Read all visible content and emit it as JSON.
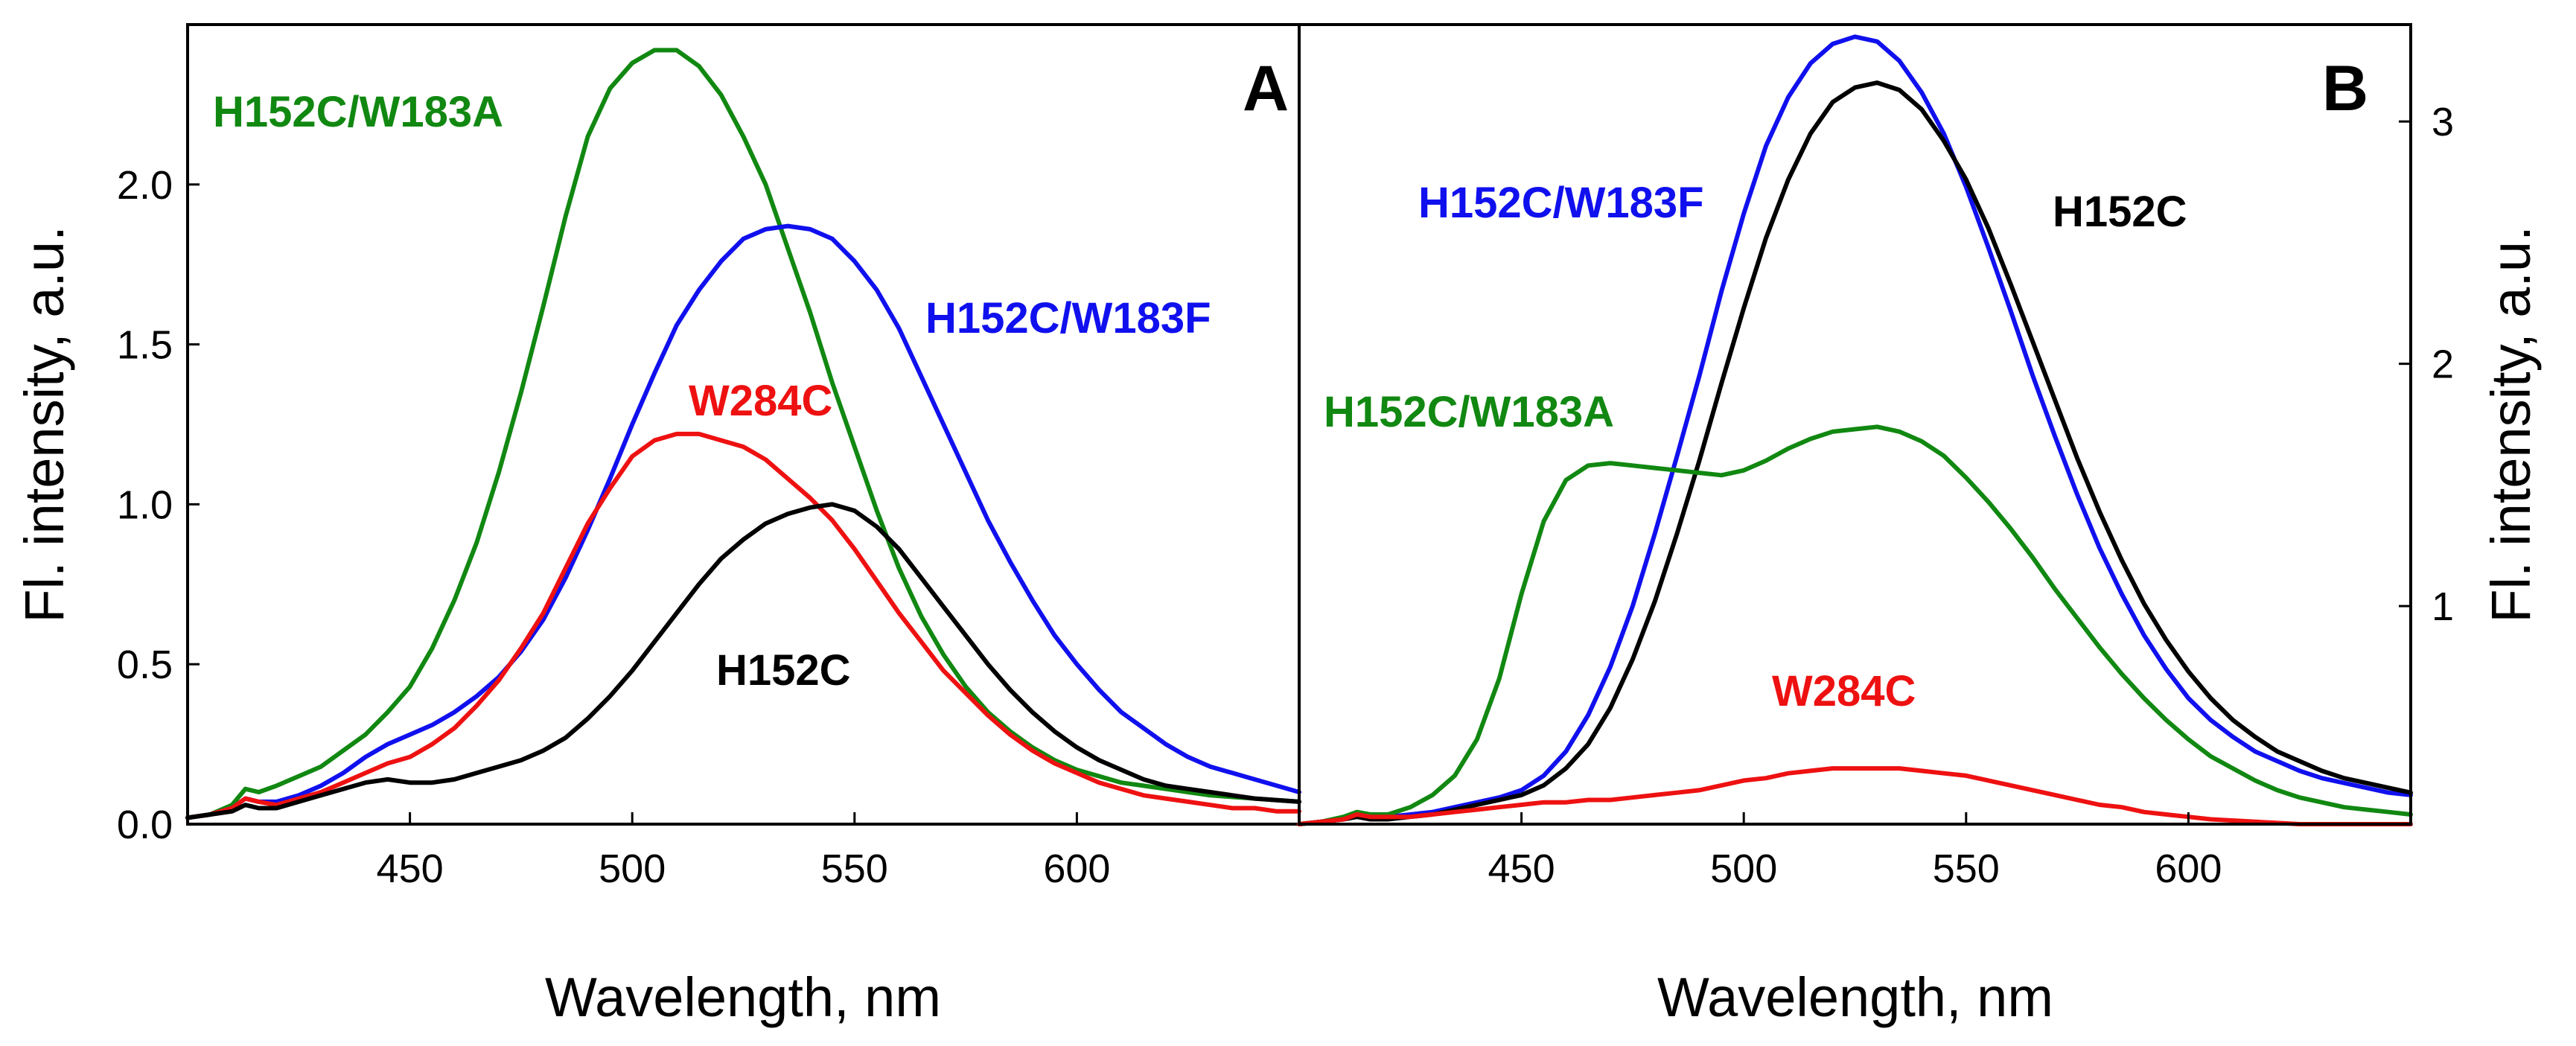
{
  "colors": {
    "H152C": "#000000",
    "H152C/W183F": "#1010ee",
    "H152C/W183A": "#118811",
    "W284C": "#ee1111"
  },
  "chart_data": [
    {
      "type": "line",
      "panel_letter": "A",
      "title": "",
      "xlabel": "Wavelength, nm",
      "ylabel": "Fl. intensity, a.u.",
      "xlim": [
        400,
        650
      ],
      "ylim": [
        0,
        2.5
      ],
      "xticks": [
        450,
        500,
        550,
        600
      ],
      "yticks": [
        0.0,
        0.5,
        1.0,
        1.5,
        2.0
      ],
      "xtick_labels": [
        "450",
        "500",
        "550",
        "600"
      ],
      "ytick_labels": [
        "0.0",
        "0.5",
        "1.0",
        "1.5",
        "2.0"
      ],
      "grid": false,
      "x": [
        400,
        405,
        410,
        413,
        416,
        420,
        425,
        430,
        435,
        440,
        445,
        450,
        455,
        460,
        465,
        470,
        475,
        480,
        485,
        490,
        495,
        500,
        505,
        510,
        515,
        520,
        525,
        530,
        535,
        540,
        545,
        550,
        555,
        560,
        565,
        570,
        575,
        580,
        585,
        590,
        595,
        600,
        605,
        610,
        615,
        620,
        625,
        630,
        635,
        640,
        645,
        650
      ],
      "series": [
        {
          "name": "H152C/W183A",
          "label_text": "H152C/W183A",
          "values": [
            0.02,
            0.03,
            0.06,
            0.11,
            0.1,
            0.12,
            0.15,
            0.18,
            0.23,
            0.28,
            0.35,
            0.43,
            0.55,
            0.7,
            0.88,
            1.1,
            1.35,
            1.62,
            1.9,
            2.15,
            2.3,
            2.38,
            2.42,
            2.42,
            2.37,
            2.28,
            2.15,
            2.0,
            1.8,
            1.6,
            1.38,
            1.18,
            0.98,
            0.8,
            0.65,
            0.53,
            0.43,
            0.35,
            0.29,
            0.24,
            0.2,
            0.17,
            0.15,
            0.13,
            0.12,
            0.11,
            0.1,
            0.09,
            0.085,
            0.08,
            0.075,
            0.07
          ]
        },
        {
          "name": "H152C/W183F",
          "label_text": "H152C/W183F",
          "values": [
            0.02,
            0.03,
            0.05,
            0.08,
            0.07,
            0.07,
            0.09,
            0.12,
            0.16,
            0.21,
            0.25,
            0.28,
            0.31,
            0.35,
            0.4,
            0.46,
            0.54,
            0.64,
            0.77,
            0.92,
            1.08,
            1.25,
            1.41,
            1.56,
            1.67,
            1.76,
            1.83,
            1.86,
            1.87,
            1.86,
            1.83,
            1.76,
            1.67,
            1.55,
            1.4,
            1.25,
            1.1,
            0.95,
            0.82,
            0.7,
            0.59,
            0.5,
            0.42,
            0.35,
            0.3,
            0.25,
            0.21,
            0.18,
            0.16,
            0.14,
            0.12,
            0.1
          ]
        },
        {
          "name": "W284C",
          "label_text": "W284C",
          "values": [
            0.02,
            0.03,
            0.05,
            0.08,
            0.07,
            0.06,
            0.08,
            0.1,
            0.13,
            0.16,
            0.19,
            0.21,
            0.25,
            0.3,
            0.37,
            0.45,
            0.55,
            0.66,
            0.8,
            0.94,
            1.05,
            1.15,
            1.2,
            1.22,
            1.22,
            1.2,
            1.18,
            1.14,
            1.08,
            1.02,
            0.95,
            0.86,
            0.76,
            0.66,
            0.57,
            0.48,
            0.41,
            0.34,
            0.28,
            0.23,
            0.19,
            0.16,
            0.13,
            0.11,
            0.09,
            0.08,
            0.07,
            0.06,
            0.05,
            0.05,
            0.04,
            0.04
          ]
        },
        {
          "name": "H152C",
          "label_text": "H152C",
          "values": [
            0.02,
            0.03,
            0.04,
            0.06,
            0.05,
            0.05,
            0.07,
            0.09,
            0.11,
            0.13,
            0.14,
            0.13,
            0.13,
            0.14,
            0.16,
            0.18,
            0.2,
            0.23,
            0.27,
            0.33,
            0.4,
            0.48,
            0.57,
            0.66,
            0.75,
            0.83,
            0.89,
            0.94,
            0.97,
            0.99,
            1.0,
            0.98,
            0.93,
            0.86,
            0.77,
            0.68,
            0.59,
            0.5,
            0.42,
            0.35,
            0.29,
            0.24,
            0.2,
            0.17,
            0.14,
            0.12,
            0.11,
            0.1,
            0.09,
            0.08,
            0.075,
            0.07
          ]
        }
      ]
    },
    {
      "type": "line",
      "panel_letter": "B",
      "title": "",
      "xlabel": "Wavelength, nm",
      "ylabel": "Fl. intensity, a.u.",
      "xlim": [
        400,
        650
      ],
      "ylim": [
        0.1,
        3.4
      ],
      "xticks": [
        450,
        500,
        550,
        600
      ],
      "yticks": [
        1,
        2,
        3
      ],
      "xtick_labels": [
        "450",
        "500",
        "550",
        "600"
      ],
      "ytick_labels": [
        "1",
        "2",
        "3"
      ],
      "grid": false,
      "x": [
        400,
        405,
        410,
        413,
        416,
        420,
        425,
        430,
        435,
        440,
        445,
        450,
        455,
        460,
        465,
        470,
        475,
        480,
        485,
        490,
        495,
        500,
        505,
        510,
        515,
        520,
        525,
        530,
        535,
        540,
        545,
        550,
        555,
        560,
        565,
        570,
        575,
        580,
        585,
        590,
        595,
        600,
        605,
        610,
        615,
        620,
        625,
        630,
        635,
        640,
        645,
        650
      ],
      "series": [
        {
          "name": "H152C/W183F",
          "label_text": "H152C/W183F",
          "values": [
            0.1,
            0.11,
            0.12,
            0.14,
            0.13,
            0.13,
            0.14,
            0.15,
            0.17,
            0.19,
            0.21,
            0.24,
            0.3,
            0.4,
            0.55,
            0.75,
            1.0,
            1.3,
            1.62,
            1.95,
            2.3,
            2.62,
            2.9,
            3.1,
            3.24,
            3.32,
            3.35,
            3.33,
            3.25,
            3.12,
            2.95,
            2.73,
            2.48,
            2.22,
            1.95,
            1.7,
            1.46,
            1.24,
            1.05,
            0.88,
            0.74,
            0.62,
            0.53,
            0.46,
            0.4,
            0.36,
            0.32,
            0.29,
            0.27,
            0.25,
            0.23,
            0.22
          ]
        },
        {
          "name": "H152C",
          "label_text": "H152C",
          "values": [
            0.1,
            0.11,
            0.12,
            0.13,
            0.12,
            0.12,
            0.13,
            0.14,
            0.16,
            0.18,
            0.2,
            0.22,
            0.26,
            0.33,
            0.43,
            0.58,
            0.78,
            1.02,
            1.3,
            1.6,
            1.92,
            2.23,
            2.52,
            2.76,
            2.95,
            3.08,
            3.14,
            3.16,
            3.13,
            3.05,
            2.92,
            2.76,
            2.56,
            2.33,
            2.09,
            1.85,
            1.61,
            1.39,
            1.19,
            1.01,
            0.86,
            0.73,
            0.62,
            0.53,
            0.46,
            0.4,
            0.36,
            0.32,
            0.29,
            0.27,
            0.25,
            0.23
          ]
        },
        {
          "name": "H152C/W183A",
          "label_text": "H152C/W183A",
          "values": [
            0.1,
            0.11,
            0.13,
            0.15,
            0.14,
            0.14,
            0.17,
            0.22,
            0.3,
            0.45,
            0.7,
            1.05,
            1.35,
            1.52,
            1.58,
            1.59,
            1.58,
            1.57,
            1.56,
            1.55,
            1.54,
            1.56,
            1.6,
            1.65,
            1.69,
            1.72,
            1.73,
            1.74,
            1.72,
            1.68,
            1.62,
            1.53,
            1.43,
            1.32,
            1.2,
            1.07,
            0.95,
            0.83,
            0.72,
            0.62,
            0.53,
            0.45,
            0.38,
            0.33,
            0.28,
            0.24,
            0.21,
            0.19,
            0.17,
            0.16,
            0.15,
            0.14
          ]
        },
        {
          "name": "W284C",
          "label_text": "W284C",
          "values": [
            0.1,
            0.11,
            0.12,
            0.14,
            0.13,
            0.13,
            0.13,
            0.14,
            0.15,
            0.16,
            0.17,
            0.18,
            0.19,
            0.19,
            0.2,
            0.2,
            0.21,
            0.22,
            0.23,
            0.24,
            0.26,
            0.28,
            0.29,
            0.31,
            0.32,
            0.33,
            0.33,
            0.33,
            0.33,
            0.32,
            0.31,
            0.3,
            0.28,
            0.26,
            0.24,
            0.22,
            0.2,
            0.18,
            0.17,
            0.15,
            0.14,
            0.13,
            0.12,
            0.115,
            0.11,
            0.105,
            0.1,
            0.1,
            0.1,
            0.1,
            0.1,
            0.1
          ]
        }
      ]
    }
  ]
}
